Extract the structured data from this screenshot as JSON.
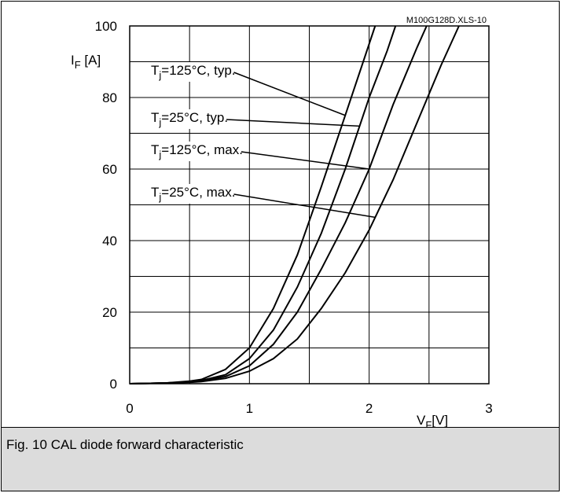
{
  "chart_data": {
    "type": "line",
    "file_label": "M100G128D.XLS-10",
    "ylabel": {
      "main": "I",
      "sub": "F",
      "unit": " [A]"
    },
    "xlabel": {
      "main": "V",
      "sub": "F",
      "unit": "[V]"
    },
    "xlim": [
      0,
      3
    ],
    "ylim": [
      0,
      100
    ],
    "x_ticks": [
      0,
      1,
      2,
      3
    ],
    "y_ticks": [
      0,
      20,
      40,
      60,
      80,
      100
    ],
    "x_tick_labels": [
      "0",
      "1",
      "2",
      "3"
    ],
    "y_tick_labels": [
      "0",
      "20",
      "40",
      "60",
      "80",
      "100"
    ],
    "x_grid_step": 0.5,
    "y_grid_step": 10,
    "grid": true,
    "series": [
      {
        "name": "Tj=125°C, typ.",
        "label_parts": {
          "main": "T",
          "sub": "j",
          "rest": "=125°C, typ."
        },
        "points": [
          [
            0,
            0
          ],
          [
            0.3,
            0.2
          ],
          [
            0.5,
            0.7
          ],
          [
            0.6,
            1.2
          ],
          [
            0.8,
            4
          ],
          [
            1.0,
            10
          ],
          [
            1.2,
            21
          ],
          [
            1.4,
            36
          ],
          [
            1.6,
            55
          ],
          [
            1.8,
            75
          ],
          [
            1.95,
            90
          ],
          [
            2.05,
            100
          ]
        ],
        "pointer_at": 1.8
      },
      {
        "name": "Tj=25°C, typ.",
        "label_parts": {
          "main": "T",
          "sub": "j",
          "rest": "=25°C, typ."
        },
        "points": [
          [
            0,
            0
          ],
          [
            0.3,
            0.2
          ],
          [
            0.5,
            0.5
          ],
          [
            0.6,
            0.9
          ],
          [
            0.8,
            2.5
          ],
          [
            1.0,
            7
          ],
          [
            1.2,
            15
          ],
          [
            1.4,
            27
          ],
          [
            1.6,
            42
          ],
          [
            1.8,
            60
          ],
          [
            2.0,
            80
          ],
          [
            2.15,
            93
          ],
          [
            2.22,
            100
          ]
        ],
        "pointer_at": 1.92
      },
      {
        "name": "Tj=125°C, max.",
        "label_parts": {
          "main": "T",
          "sub": "j",
          "rest": "=125°C, max."
        },
        "points": [
          [
            0,
            0
          ],
          [
            0.3,
            0.2
          ],
          [
            0.5,
            0.5
          ],
          [
            0.6,
            0.8
          ],
          [
            0.8,
            2
          ],
          [
            1.0,
            5
          ],
          [
            1.2,
            11
          ],
          [
            1.4,
            20
          ],
          [
            1.6,
            32
          ],
          [
            1.8,
            45
          ],
          [
            2.0,
            60
          ],
          [
            2.2,
            78
          ],
          [
            2.4,
            94
          ],
          [
            2.48,
            100
          ]
        ],
        "pointer_at": 2.0
      },
      {
        "name": "Tj=25°C, max.",
        "label_parts": {
          "main": "T",
          "sub": "j",
          "rest": "=25°C, max."
        },
        "points": [
          [
            0,
            0
          ],
          [
            0.3,
            0.2
          ],
          [
            0.5,
            0.4
          ],
          [
            0.6,
            0.6
          ],
          [
            0.8,
            1.5
          ],
          [
            1.0,
            3.5
          ],
          [
            1.2,
            7
          ],
          [
            1.4,
            12.5
          ],
          [
            1.6,
            21
          ],
          [
            1.8,
            31
          ],
          [
            2.0,
            43
          ],
          [
            2.2,
            57
          ],
          [
            2.4,
            73
          ],
          [
            2.6,
            89
          ],
          [
            2.75,
            100
          ]
        ],
        "pointer_at": 2.05
      }
    ]
  },
  "caption": "Fig. 10 CAL diode forward characteristic"
}
